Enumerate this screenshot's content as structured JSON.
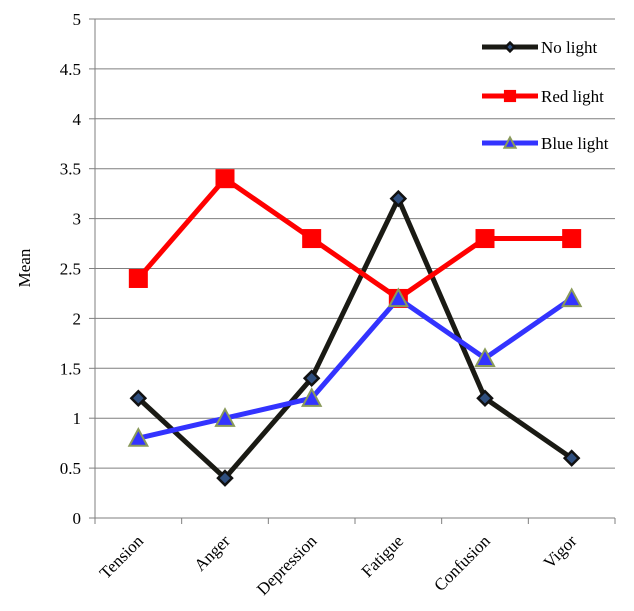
{
  "chart_data": {
    "type": "line",
    "title": "",
    "xlabel": "",
    "ylabel": "Mean",
    "ylim": [
      0,
      5
    ],
    "yticks": [
      "0",
      "0.5",
      "1",
      "1.5",
      "2",
      "2.5",
      "3",
      "3.5",
      "4",
      "4.5",
      "5"
    ],
    "categories": [
      "Tension",
      "Anger",
      "Depression",
      "Fatigue",
      "Confusion",
      "Vigor"
    ],
    "grid": "horizontal",
    "legend_position": "top-right",
    "series": [
      {
        "name": "No light",
        "values": [
          1.2,
          0.4,
          1.4,
          3.2,
          1.2,
          0.6
        ],
        "line_color": "#1a1a14",
        "marker": "diamond",
        "marker_color": "#2f4f7f"
      },
      {
        "name": "Red light",
        "values": [
          2.4,
          3.4,
          2.8,
          2.2,
          2.8,
          2.8
        ],
        "line_color": "#ff0000",
        "marker": "square",
        "marker_color": "#ff0000"
      },
      {
        "name": "Blue light",
        "values": [
          0.8,
          1.0,
          1.2,
          2.2,
          1.6,
          2.2
        ],
        "line_color": "#3333ff",
        "marker": "triangle",
        "marker_color": "#8a9a5b"
      }
    ]
  }
}
